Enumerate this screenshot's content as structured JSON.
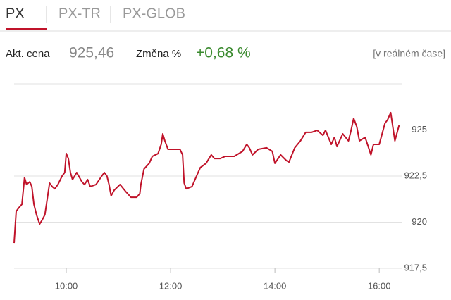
{
  "tabs": [
    "PX",
    "PX-TR",
    "PX-GLOB"
  ],
  "quote": {
    "price_label": "Akt. cena",
    "price": "925,46",
    "change_label": "Změna %",
    "change": "+0,68 %",
    "realtime": "[v reálném čase]"
  },
  "chart_data": {
    "type": "line",
    "color": "#c0132a",
    "x": [
      9.0,
      9.04,
      9.09,
      9.15,
      9.2,
      9.24,
      9.3,
      9.34,
      9.38,
      9.43,
      9.49,
      9.54,
      9.59,
      9.64,
      9.68,
      9.73,
      9.78,
      9.84,
      9.92,
      9.97,
      10.0,
      10.04,
      10.08,
      10.12,
      10.2,
      10.3,
      10.35,
      10.41,
      10.46,
      10.57,
      10.68,
      10.73,
      10.78,
      10.82,
      10.86,
      10.92,
      11.03,
      11.14,
      11.24,
      11.35,
      11.41,
      11.43,
      11.49,
      11.59,
      11.65,
      11.76,
      11.82,
      11.85,
      11.89,
      11.95,
      12.05,
      12.18,
      12.23,
      12.26,
      12.3,
      12.41,
      12.51,
      12.57,
      12.68,
      12.78,
      12.84,
      12.95,
      13.05,
      13.22,
      13.38,
      13.46,
      13.51,
      13.57,
      13.68,
      13.84,
      13.95,
      14.0,
      14.11,
      14.22,
      14.27,
      14.38,
      14.49,
      14.59,
      14.7,
      14.81,
      14.92,
      14.97,
      15.08,
      15.14,
      15.19,
      15.3,
      15.41,
      15.46,
      15.51,
      15.57,
      15.62,
      15.73,
      15.84,
      15.89,
      16.0,
      16.11,
      16.16,
      16.22,
      16.3,
      16.38
    ],
    "values": [
      918.87,
      920.59,
      920.78,
      920.97,
      922.42,
      922.04,
      922.19,
      921.93,
      920.97,
      920.4,
      919.9,
      920.13,
      920.4,
      921.35,
      922.12,
      921.93,
      921.81,
      922.04,
      922.5,
      922.69,
      923.72,
      923.45,
      922.69,
      922.31,
      922.69,
      922.19,
      922.04,
      922.31,
      921.93,
      922.04,
      922.5,
      922.69,
      922.5,
      922.04,
      921.43,
      921.74,
      922.04,
      921.66,
      921.35,
      921.35,
      921.55,
      922.04,
      922.88,
      923.19,
      923.57,
      923.72,
      924.22,
      924.79,
      924.41,
      923.95,
      923.95,
      923.95,
      923.65,
      922.12,
      921.81,
      921.93,
      922.58,
      922.96,
      923.19,
      923.65,
      923.45,
      923.45,
      923.57,
      923.57,
      923.84,
      924.22,
      924.03,
      923.65,
      923.95,
      924.03,
      923.84,
      923.19,
      923.65,
      923.34,
      923.26,
      924.03,
      924.41,
      924.87,
      924.87,
      924.98,
      924.71,
      924.98,
      924.22,
      924.6,
      924.1,
      924.79,
      924.41,
      924.98,
      925.63,
      925.17,
      924.41,
      924.6,
      923.65,
      924.22,
      924.22,
      925.36,
      925.55,
      925.94,
      924.41,
      925.25
    ],
    "xlim": [
      9,
      16.43
    ],
    "xticks": [
      {
        "value": 10,
        "label": "10:00"
      },
      {
        "value": 12,
        "label": "12:00"
      },
      {
        "value": 14,
        "label": "14:00"
      },
      {
        "value": 16,
        "label": "16:00"
      }
    ],
    "ylim": [
      917.5,
      927.5
    ],
    "yticks": [
      {
        "value": 917.5,
        "label": "917,5"
      },
      920,
      {
        "value": 922.5,
        "label": "922,5"
      },
      925
    ],
    "grid": true
  }
}
